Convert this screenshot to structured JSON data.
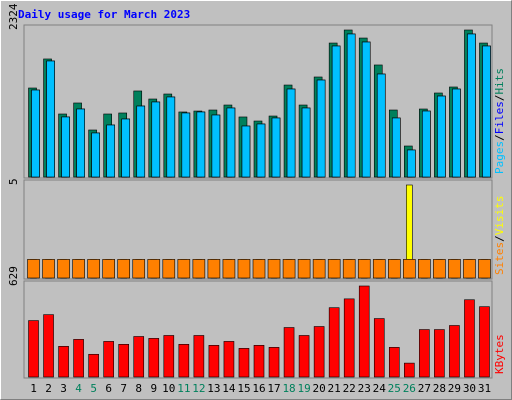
{
  "chart_data": [
    {
      "type": "bar",
      "title": "Daily usage for March 2023",
      "ylim": [
        0,
        2324
      ],
      "yticks": [
        2324
      ],
      "series": [
        {
          "name": "Pages",
          "color": "#00c0ff",
          "values": [
            1375,
            1834,
            949,
            1075,
            696,
            822,
            917,
            1122,
            1186,
            1265,
            1012,
            1028,
            980,
            1091,
            806,
            838,
            933,
            1391,
            1091,
            1533,
            2071,
            2261,
            2134,
            1628,
            933,
            427,
            1043,
            1280,
            1391,
            2261,
            2071
          ]
        },
        {
          "name": "Files",
          "color": "#0000ff",
          "values": [
            1375,
            1834,
            949,
            1075,
            696,
            822,
            917,
            1122,
            1186,
            1265,
            1012,
            1028,
            980,
            1091,
            806,
            838,
            933,
            1391,
            1091,
            1533,
            2071,
            2261,
            2134,
            1628,
            933,
            427,
            1043,
            1280,
            1391,
            2261,
            2071
          ]
        },
        {
          "name": "Hits",
          "color": "#00805c",
          "values": [
            1407,
            1866,
            996,
            1170,
            743,
            996,
            1012,
            1360,
            1233,
            1312,
            1028,
            1043,
            1059,
            1138,
            949,
            885,
            964,
            1454,
            1138,
            1581,
            2118,
            2324,
            2197,
            1771,
            1059,
            490,
            1075,
            1328,
            1423,
            2324,
            2118
          ]
        }
      ]
    },
    {
      "type": "bar",
      "ylim": [
        0,
        5
      ],
      "yticks": [
        5
      ],
      "series": [
        {
          "name": "Sites",
          "color": "#ff8000",
          "values": [
            1,
            1,
            1,
            1,
            1,
            1,
            1,
            1,
            1,
            1,
            1,
            1,
            1,
            1,
            1,
            1,
            1,
            1,
            1,
            1,
            1,
            1,
            1,
            1,
            1,
            1,
            1,
            1,
            1,
            1,
            1
          ]
        },
        {
          "name": "Visits",
          "color": "#ffff00",
          "values": [
            1,
            1,
            1,
            1,
            1,
            1,
            1,
            1,
            1,
            1,
            1,
            1,
            1,
            1,
            1,
            1,
            1,
            1,
            1,
            1,
            1,
            1,
            1,
            1,
            1,
            5,
            1,
            1,
            1,
            1,
            1
          ]
        }
      ]
    },
    {
      "type": "bar",
      "ylim": [
        0,
        629
      ],
      "yticks": [
        629
      ],
      "categories": [
        "1",
        "2",
        "3",
        "4",
        "5",
        "6",
        "7",
        "8",
        "9",
        "10",
        "11",
        "12",
        "13",
        "14",
        "15",
        "16",
        "17",
        "18",
        "19",
        "20",
        "21",
        "22",
        "23",
        "24",
        "25",
        "26",
        "27",
        "28",
        "29",
        "30",
        "31"
      ],
      "category_colors": [
        "#000000",
        "#000000",
        "#000000",
        "#00805c",
        "#00805c",
        "#000000",
        "#000000",
        "#000000",
        "#000000",
        "#000000",
        "#00805c",
        "#00805c",
        "#000000",
        "#000000",
        "#000000",
        "#000000",
        "#000000",
        "#00805c",
        "#00805c",
        "#000000",
        "#000000",
        "#000000",
        "#000000",
        "#000000",
        "#00805c",
        "#00805c",
        "#000000",
        "#000000",
        "#000000",
        "#000000",
        "#000000"
      ],
      "series": [
        {
          "name": "KBytes",
          "color": "#ff0000",
          "values": [
            390,
            431,
            212,
            260,
            157,
            246,
            226,
            280,
            267,
            287,
            226,
            287,
            219,
            246,
            198,
            219,
            205,
            342,
            287,
            349,
            479,
            540,
            629,
            404,
            205,
            96,
            328,
            328,
            356,
            534,
            486
          ]
        }
      ]
    }
  ]
}
